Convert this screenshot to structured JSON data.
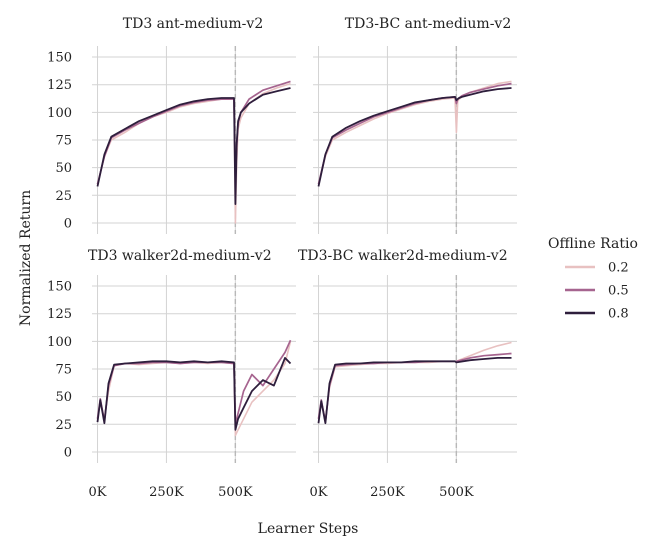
{
  "chart_data": {
    "type": "line",
    "xlabel": "Learner Steps",
    "ylabel": "Normalized Return",
    "xlim": [
      -20000,
      720000
    ],
    "ylim": [
      -10,
      160
    ],
    "x_ticks": [
      0,
      250000,
      500000
    ],
    "x_tick_labels": [
      "0K",
      "250K",
      "500K"
    ],
    "y_ticks": [
      0,
      25,
      50,
      75,
      100,
      125,
      150
    ],
    "y_tick_labels": [
      "0",
      "25",
      "50",
      "75",
      "100",
      "125",
      "150"
    ],
    "offline_to_online_step": 500000,
    "legend": {
      "title": "Offline Ratio",
      "position": "right",
      "entries": [
        {
          "label": "0.2",
          "color": "#e8c1c1"
        },
        {
          "label": "0.5",
          "color": "#a6648f"
        },
        {
          "label": "0.8",
          "color": "#2e1e3c"
        }
      ]
    },
    "panels": [
      {
        "title": "TD3 ant-medium-v2",
        "x": [
          0,
          25000,
          50000,
          100000,
          150000,
          200000,
          250000,
          300000,
          350000,
          400000,
          450000,
          495000,
          500000,
          505000,
          510000,
          520000,
          550000,
          600000,
          650000,
          700000
        ],
        "series": [
          {
            "name": "0.2",
            "values": [
              35,
              60,
              75,
              82,
              90,
              96,
              100,
              105,
              108,
              110,
              112,
              112,
              0,
              55,
              85,
              95,
              108,
              117,
              122,
              126
            ]
          },
          {
            "name": "0.5",
            "values": [
              35,
              60,
              77,
              84,
              90,
              96,
              101,
              106,
              109,
              111,
              112,
              112,
              40,
              70,
              90,
              100,
              112,
              120,
              124,
              128
            ]
          },
          {
            "name": "0.8",
            "values": [
              33,
              62,
              78,
              85,
              92,
              97,
              102,
              107,
              110,
              112,
              113,
              113,
              17,
              72,
              92,
              100,
              108,
              116,
              119,
              122
            ]
          }
        ]
      },
      {
        "title": "TD3-BC ant-medium-v2",
        "x": [
          0,
          25000,
          50000,
          100000,
          150000,
          200000,
          250000,
          300000,
          350000,
          400000,
          450000,
          495000,
          500000,
          505000,
          510000,
          520000,
          550000,
          600000,
          650000,
          700000
        ],
        "series": [
          {
            "name": "0.2",
            "values": [
              35,
              60,
              75,
              82,
              88,
              94,
              99,
              103,
              107,
              110,
              112,
              113,
              82,
              110,
              112,
              114,
              118,
              122,
              126,
              128
            ]
          },
          {
            "name": "0.5",
            "values": [
              35,
              62,
              77,
              84,
              90,
              96,
              100,
              104,
              108,
              111,
              113,
              114,
              108,
              112,
              113,
              115,
              118,
              121,
              124,
              126
            ]
          },
          {
            "name": "0.8",
            "values": [
              33,
              62,
              78,
              86,
              92,
              97,
              101,
              105,
              109,
              111,
              113,
              114,
              111,
              112,
              113,
              114,
              116,
              119,
              121,
              122
            ]
          }
        ]
      },
      {
        "title": "TD3 walker2d-medium-v2",
        "x": [
          0,
          10000,
          25000,
          40000,
          60000,
          100000,
          150000,
          200000,
          250000,
          300000,
          350000,
          400000,
          450000,
          495000,
          500000,
          510000,
          530000,
          560000,
          600000,
          640000,
          680000,
          700000
        ],
        "series": [
          {
            "name": "0.2",
            "values": [
              30,
              45,
              30,
              55,
              78,
              80,
              79,
              80,
              81,
              80,
              81,
              80,
              81,
              80,
              15,
              20,
              30,
              45,
              55,
              65,
              80,
              100
            ]
          },
          {
            "name": "0.5",
            "values": [
              30,
              48,
              28,
              60,
              78,
              80,
              80,
              81,
              81,
              80,
              81,
              81,
              81,
              80,
              25,
              35,
              55,
              70,
              60,
              75,
              90,
              101
            ]
          },
          {
            "name": "0.8",
            "values": [
              27,
              47,
              26,
              62,
              79,
              80,
              81,
              82,
              82,
              81,
              82,
              81,
              82,
              81,
              20,
              30,
              40,
              55,
              65,
              60,
              85,
              80
            ]
          }
        ]
      },
      {
        "title": "TD3-BC walker2d-medium-v2",
        "x": [
          0,
          10000,
          25000,
          40000,
          60000,
          100000,
          150000,
          200000,
          250000,
          300000,
          350000,
          400000,
          450000,
          495000,
          500000,
          550000,
          600000,
          650000,
          700000
        ],
        "series": [
          {
            "name": "0.2",
            "values": [
              30,
              45,
              29,
              58,
              77,
              78,
              79,
              80,
              80,
              81,
              81,
              81,
              82,
              82,
              82,
              87,
              92,
              96,
              99
            ]
          },
          {
            "name": "0.5",
            "values": [
              30,
              47,
              27,
              60,
              78,
              79,
              80,
              80,
              81,
              81,
              81,
              82,
              82,
              82,
              82,
              85,
              87,
              88,
              89
            ]
          },
          {
            "name": "0.8",
            "values": [
              26,
              46,
              26,
              62,
              79,
              80,
              80,
              81,
              81,
              81,
              82,
              82,
              82,
              82,
              81,
              83,
              84,
              85,
              85
            ]
          }
        ]
      }
    ]
  }
}
